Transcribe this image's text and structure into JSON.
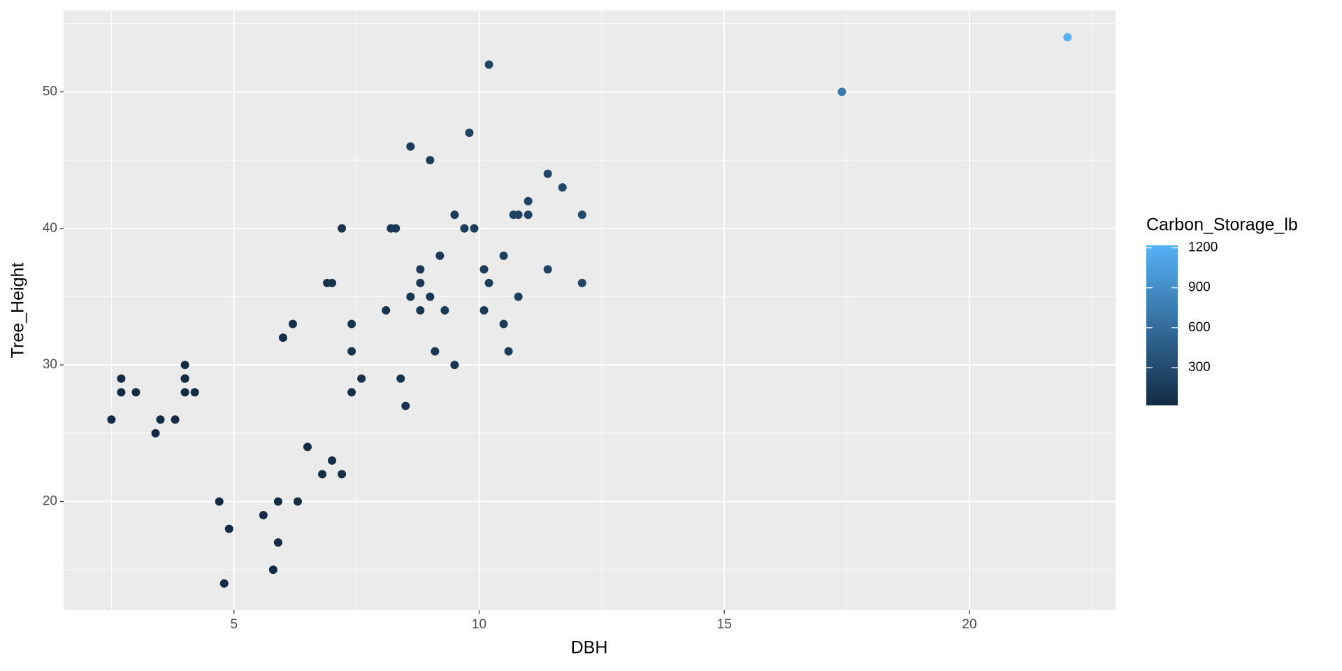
{
  "chart_data": {
    "type": "scatter",
    "x_label": "DBH",
    "y_label": "Tree_Height",
    "color_label": "Carbon_Storage_lb",
    "x": [
      2.5,
      2.7,
      2.7,
      3.0,
      3.4,
      3.5,
      3.8,
      4.0,
      4.0,
      4.0,
      4.0,
      4.2,
      4.7,
      4.8,
      4.9,
      5.6,
      5.8,
      5.9,
      5.9,
      6.0,
      6.2,
      6.3,
      6.5,
      6.8,
      6.9,
      7.0,
      7.0,
      7.2,
      7.2,
      7.4,
      7.4,
      7.4,
      7.6,
      8.1,
      8.2,
      8.3,
      8.4,
      8.5,
      8.6,
      8.6,
      8.8,
      8.8,
      8.8,
      9.0,
      9.0,
      9.1,
      9.2,
      9.3,
      9.5,
      9.5,
      9.7,
      9.8,
      9.9,
      10.1,
      10.1,
      10.2,
      10.2,
      10.5,
      10.5,
      10.6,
      10.7,
      10.8,
      10.8,
      11.0,
      11.0,
      11.4,
      11.4,
      11.7,
      12.1,
      12.1,
      17.4,
      22.0
    ],
    "values": [
      26,
      29,
      28,
      28,
      25,
      26,
      26,
      30,
      29,
      29,
      28,
      28,
      20,
      14,
      18,
      19,
      15,
      17,
      20,
      32,
      33,
      20,
      24,
      22,
      36,
      36,
      23,
      40,
      22,
      33,
      31,
      28,
      29,
      34,
      40,
      40,
      29,
      27,
      46,
      35,
      37,
      36,
      34,
      45,
      35,
      31,
      38,
      34,
      41,
      30,
      40,
      47,
      40,
      37,
      34,
      52,
      36,
      38,
      33,
      31,
      41,
      41,
      35,
      42,
      41,
      44,
      37,
      43,
      41,
      36,
      50,
      54
    ],
    "color_values": [
      20,
      20,
      20,
      20,
      20,
      20,
      20,
      22,
      22,
      22,
      21,
      23,
      21,
      20,
      20,
      28,
      24,
      28,
      32,
      54,
      59,
      37,
      47,
      47,
      80,
      82,
      53,
      97,
      53,
      84,
      79,
      71,
      78,
      104,
      125,
      128,
      95,
      91,
      159,
      121,
      134,
      130,
      123,
      170,
      132,
      120,
      150,
      137,
      172,
      126,
      175,
      210,
      183,
      176,
      162,
      252,
      175,
      195,
      170,
      162,
      219,
      223,
      190,
      237,
      231,
      266,
      224,
      274,
      280,
      246,
      705,
      1219
    ],
    "color_low": "#132B43",
    "color_high": "#56B1F7",
    "colorlim": [
      16,
      1219
    ],
    "colorticks": [
      300,
      600,
      900,
      1200
    ],
    "xlim": [
      1.525,
      22.98
    ],
    "xticks": [
      5,
      10,
      15,
      20
    ],
    "ylim": [
      12.04,
      55.96
    ],
    "yticks": [
      20,
      30,
      40,
      50
    ],
    "grid": true
  }
}
